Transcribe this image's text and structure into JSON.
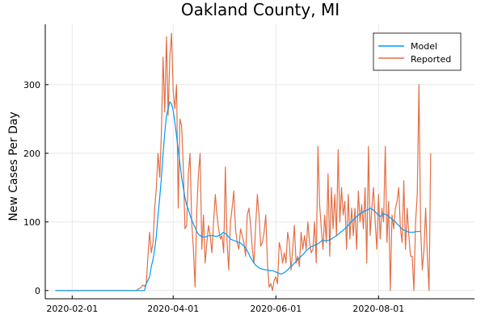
{
  "chart_data": {
    "type": "line",
    "title": "Oakland County, MI",
    "xlabel": "",
    "ylabel": "New Cases Per Day",
    "x_start": "2020-01-22",
    "x_end": "2020-09-22",
    "xlim": [
      "2020-01-16",
      "2020-09-27"
    ],
    "ylim": [
      -12,
      388
    ],
    "x_ticks": [
      "2020-02-01",
      "2020-04-01",
      "2020-06-01",
      "2020-08-01"
    ],
    "y_ticks": [
      0,
      100,
      200,
      300
    ],
    "grid": true,
    "legend_position": "top-right",
    "colors": {
      "Model": "#009AFA",
      "Reported": "#E26F46"
    },
    "series": [
      {
        "name": "Reported",
        "values": [
          0,
          0,
          0,
          0,
          0,
          0,
          0,
          0,
          0,
          0,
          0,
          0,
          0,
          0,
          0,
          0,
          0,
          0,
          0,
          0,
          0,
          0,
          0,
          0,
          0,
          0,
          0,
          0,
          0,
          0,
          0,
          0,
          0,
          0,
          0,
          0,
          0,
          0,
          0,
          0,
          0,
          0,
          0,
          0,
          0,
          0,
          0,
          0,
          0,
          2,
          3,
          5,
          8,
          6,
          10,
          50,
          85,
          55,
          70,
          120,
          150,
          200,
          165,
          230,
          340,
          260,
          370,
          255,
          340,
          375,
          290,
          265,
          300,
          120,
          250,
          240,
          180,
          90,
          95,
          170,
          200,
          100,
          60,
          5,
          115,
          170,
          200,
          60,
          110,
          40,
          70,
          95,
          80,
          55,
          100,
          140,
          110,
          90,
          75,
          80,
          55,
          180,
          70,
          30,
          100,
          120,
          145,
          90,
          70,
          60,
          90,
          80,
          70,
          50,
          110,
          120,
          95,
          60,
          40,
          95,
          140,
          110,
          65,
          70,
          85,
          110,
          40,
          5,
          10,
          0,
          15,
          20,
          10,
          70,
          60,
          40,
          55,
          40,
          85,
          70,
          30,
          60,
          95,
          40,
          50,
          35,
          85,
          60,
          80,
          60,
          100,
          70,
          55,
          60,
          100,
          40,
          210,
          125,
          90,
          60,
          110,
          70,
          170,
          50,
          150,
          90,
          140,
          80,
          205,
          100,
          150,
          110,
          130,
          60,
          140,
          75,
          120,
          80,
          120,
          60,
          145,
          100,
          125,
          90,
          150,
          40,
          210,
          80,
          120,
          150,
          100,
          60,
          140,
          75,
          120,
          100,
          210,
          70,
          130,
          0,
          110,
          90,
          120,
          130,
          150,
          90,
          70,
          160,
          60,
          120,
          80,
          50,
          50,
          0,
          100,
          140,
          300,
          90,
          30,
          60,
          120,
          50,
          0,
          200
        ]
      },
      {
        "name": "Model",
        "values": [
          0,
          0,
          0,
          0,
          0,
          0,
          0,
          0,
          0,
          0,
          0,
          0,
          0,
          0,
          0,
          0,
          0,
          0,
          0,
          0,
          0,
          0,
          0,
          0,
          0,
          0,
          0,
          0,
          0,
          0,
          0,
          0,
          0,
          0,
          0,
          0,
          0,
          0,
          0,
          0,
          0,
          0,
          0,
          0,
          0,
          0,
          0,
          0,
          0,
          0,
          0,
          0,
          0,
          0,
          10,
          15,
          20,
          35,
          45,
          60,
          80,
          110,
          135,
          165,
          200,
          230,
          255,
          265,
          275,
          272,
          262,
          245,
          225,
          205,
          185,
          165,
          150,
          135,
          125,
          118,
          110,
          103,
          97,
          92,
          86,
          82,
          80,
          79,
          78,
          78,
          79,
          80,
          80,
          80,
          80,
          79,
          79,
          80,
          81,
          83,
          85,
          83,
          81,
          78,
          75,
          74,
          73,
          72,
          71,
          70,
          69,
          67,
          65,
          62,
          58,
          53,
          48,
          44,
          40,
          37,
          35,
          33,
          32,
          31,
          31,
          30,
          30,
          29,
          29,
          29,
          28,
          27,
          26,
          25,
          24,
          25,
          26,
          28,
          30,
          33,
          35,
          37,
          40,
          42,
          45,
          47,
          50,
          52,
          55,
          58,
          60,
          62,
          64,
          65,
          66,
          67,
          68,
          70,
          72,
          73,
          73,
          72,
          73,
          74,
          75,
          77,
          78,
          80,
          82,
          84,
          86,
          88,
          90,
          92,
          95,
          98,
          100,
          103,
          105,
          108,
          110,
          112,
          113,
          115,
          116,
          117,
          118,
          120,
          119,
          117,
          115,
          112,
          110,
          108,
          110,
          112,
          111,
          110,
          108,
          106,
          104,
          102,
          100,
          97,
          95,
          92,
          90,
          88,
          87,
          86,
          85,
          85,
          85,
          85,
          86,
          86,
          86,
          86
        ]
      }
    ]
  }
}
